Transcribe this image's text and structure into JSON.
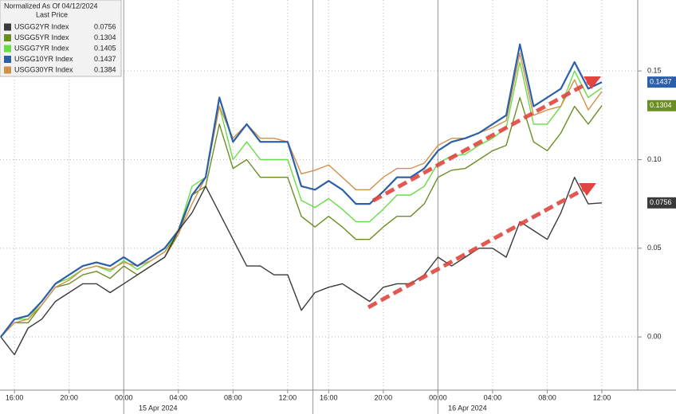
{
  "chart_data": {
    "type": "line",
    "legend_title": "Normalized As Of 04/12/2024",
    "legend_subtitle": "Last Price",
    "date_labels": [
      "15 Apr 2024",
      "16 Apr 2024"
    ],
    "categories": [
      null,
      "16:00",
      null,
      null,
      null,
      "20:00",
      null,
      null,
      null,
      "00:00",
      null,
      null,
      null,
      "04:00",
      null,
      null,
      null,
      "08:00",
      null,
      null,
      null,
      "12:00",
      null,
      null,
      "16:00",
      null,
      null,
      null,
      "20:00",
      null,
      null,
      null,
      "00:00",
      null,
      null,
      null,
      "04:00",
      null,
      null,
      null,
      "08:00",
      null,
      null,
      null,
      "12:00"
    ],
    "series": [
      {
        "name": "USGG2YR Index",
        "color": "#3a3a3a",
        "values": [
          0,
          -0.01,
          0.005,
          0.01,
          0.02,
          0.025,
          0.03,
          0.03,
          0.025,
          0.03,
          0.035,
          0.04,
          0.045,
          0.06,
          0.07,
          0.085,
          0.07,
          0.055,
          0.04,
          0.04,
          0.035,
          0.035,
          0.015,
          0.025,
          0.028,
          0.03,
          0.025,
          0.02,
          0.028,
          0.03,
          0.03,
          0.035,
          0.045,
          0.04,
          0.045,
          0.05,
          0.05,
          0.045,
          0.065,
          0.06,
          0.055,
          0.07,
          0.09,
          0.075,
          0.0756
        ]
      },
      {
        "name": "USGG5YR Index",
        "color": "#6b8e23",
        "values": [
          0,
          0.008,
          0.008,
          0.018,
          0.028,
          0.03,
          0.035,
          0.037,
          0.033,
          0.04,
          0.035,
          0.04,
          0.045,
          0.058,
          0.08,
          0.085,
          0.12,
          0.095,
          0.1,
          0.09,
          0.09,
          0.09,
          0.068,
          0.062,
          0.068,
          0.062,
          0.055,
          0.055,
          0.062,
          0.068,
          0.068,
          0.075,
          0.09,
          0.094,
          0.095,
          0.1,
          0.105,
          0.108,
          0.135,
          0.11,
          0.105,
          0.115,
          0.13,
          0.12,
          0.1304
        ]
      },
      {
        "name": "USGG7YR Index",
        "color": "#66dd44",
        "values": [
          0,
          0.01,
          0.01,
          0.02,
          0.03,
          0.033,
          0.038,
          0.04,
          0.037,
          0.043,
          0.038,
          0.043,
          0.048,
          0.06,
          0.085,
          0.09,
          0.13,
          0.1,
          0.11,
          0.1,
          0.1,
          0.1,
          0.077,
          0.073,
          0.078,
          0.072,
          0.065,
          0.065,
          0.072,
          0.08,
          0.08,
          0.085,
          0.098,
          0.102,
          0.103,
          0.108,
          0.112,
          0.118,
          0.155,
          0.12,
          0.12,
          0.13,
          0.15,
          0.135,
          0.1405
        ]
      },
      {
        "name": "USGG10YR Index",
        "color": "#2b5fa8",
        "values": [
          0,
          0.01,
          0.012,
          0.02,
          0.03,
          0.035,
          0.04,
          0.042,
          0.04,
          0.045,
          0.04,
          0.045,
          0.05,
          0.06,
          0.08,
          0.09,
          0.135,
          0.11,
          0.12,
          0.11,
          0.11,
          0.11,
          0.085,
          0.083,
          0.088,
          0.083,
          0.075,
          0.075,
          0.082,
          0.09,
          0.09,
          0.095,
          0.105,
          0.11,
          0.112,
          0.115,
          0.12,
          0.125,
          0.165,
          0.13,
          0.135,
          0.14,
          0.155,
          0.14,
          0.1437
        ]
      },
      {
        "name": "USGG30YR Index",
        "color": "#d2914a",
        "values": [
          0,
          0.008,
          0.01,
          0.018,
          0.028,
          0.032,
          0.038,
          0.04,
          0.038,
          0.042,
          0.04,
          0.043,
          0.048,
          0.058,
          0.075,
          0.09,
          0.13,
          0.112,
          0.12,
          0.112,
          0.112,
          0.11,
          0.092,
          0.094,
          0.097,
          0.09,
          0.083,
          0.083,
          0.09,
          0.095,
          0.095,
          0.098,
          0.108,
          0.112,
          0.112,
          0.115,
          0.118,
          0.122,
          0.16,
          0.125,
          0.128,
          0.13,
          0.145,
          0.128,
          0.1384
        ]
      }
    ],
    "price_tags": [
      3,
      1,
      0
    ],
    "ylim": [
      -0.03,
      0.19
    ],
    "yticks": [
      {
        "value": 0,
        "label": "0.00"
      },
      0.05,
      {
        "value": 0.1,
        "label": "0.10"
      },
      0.15
    ],
    "grid": true
  }
}
